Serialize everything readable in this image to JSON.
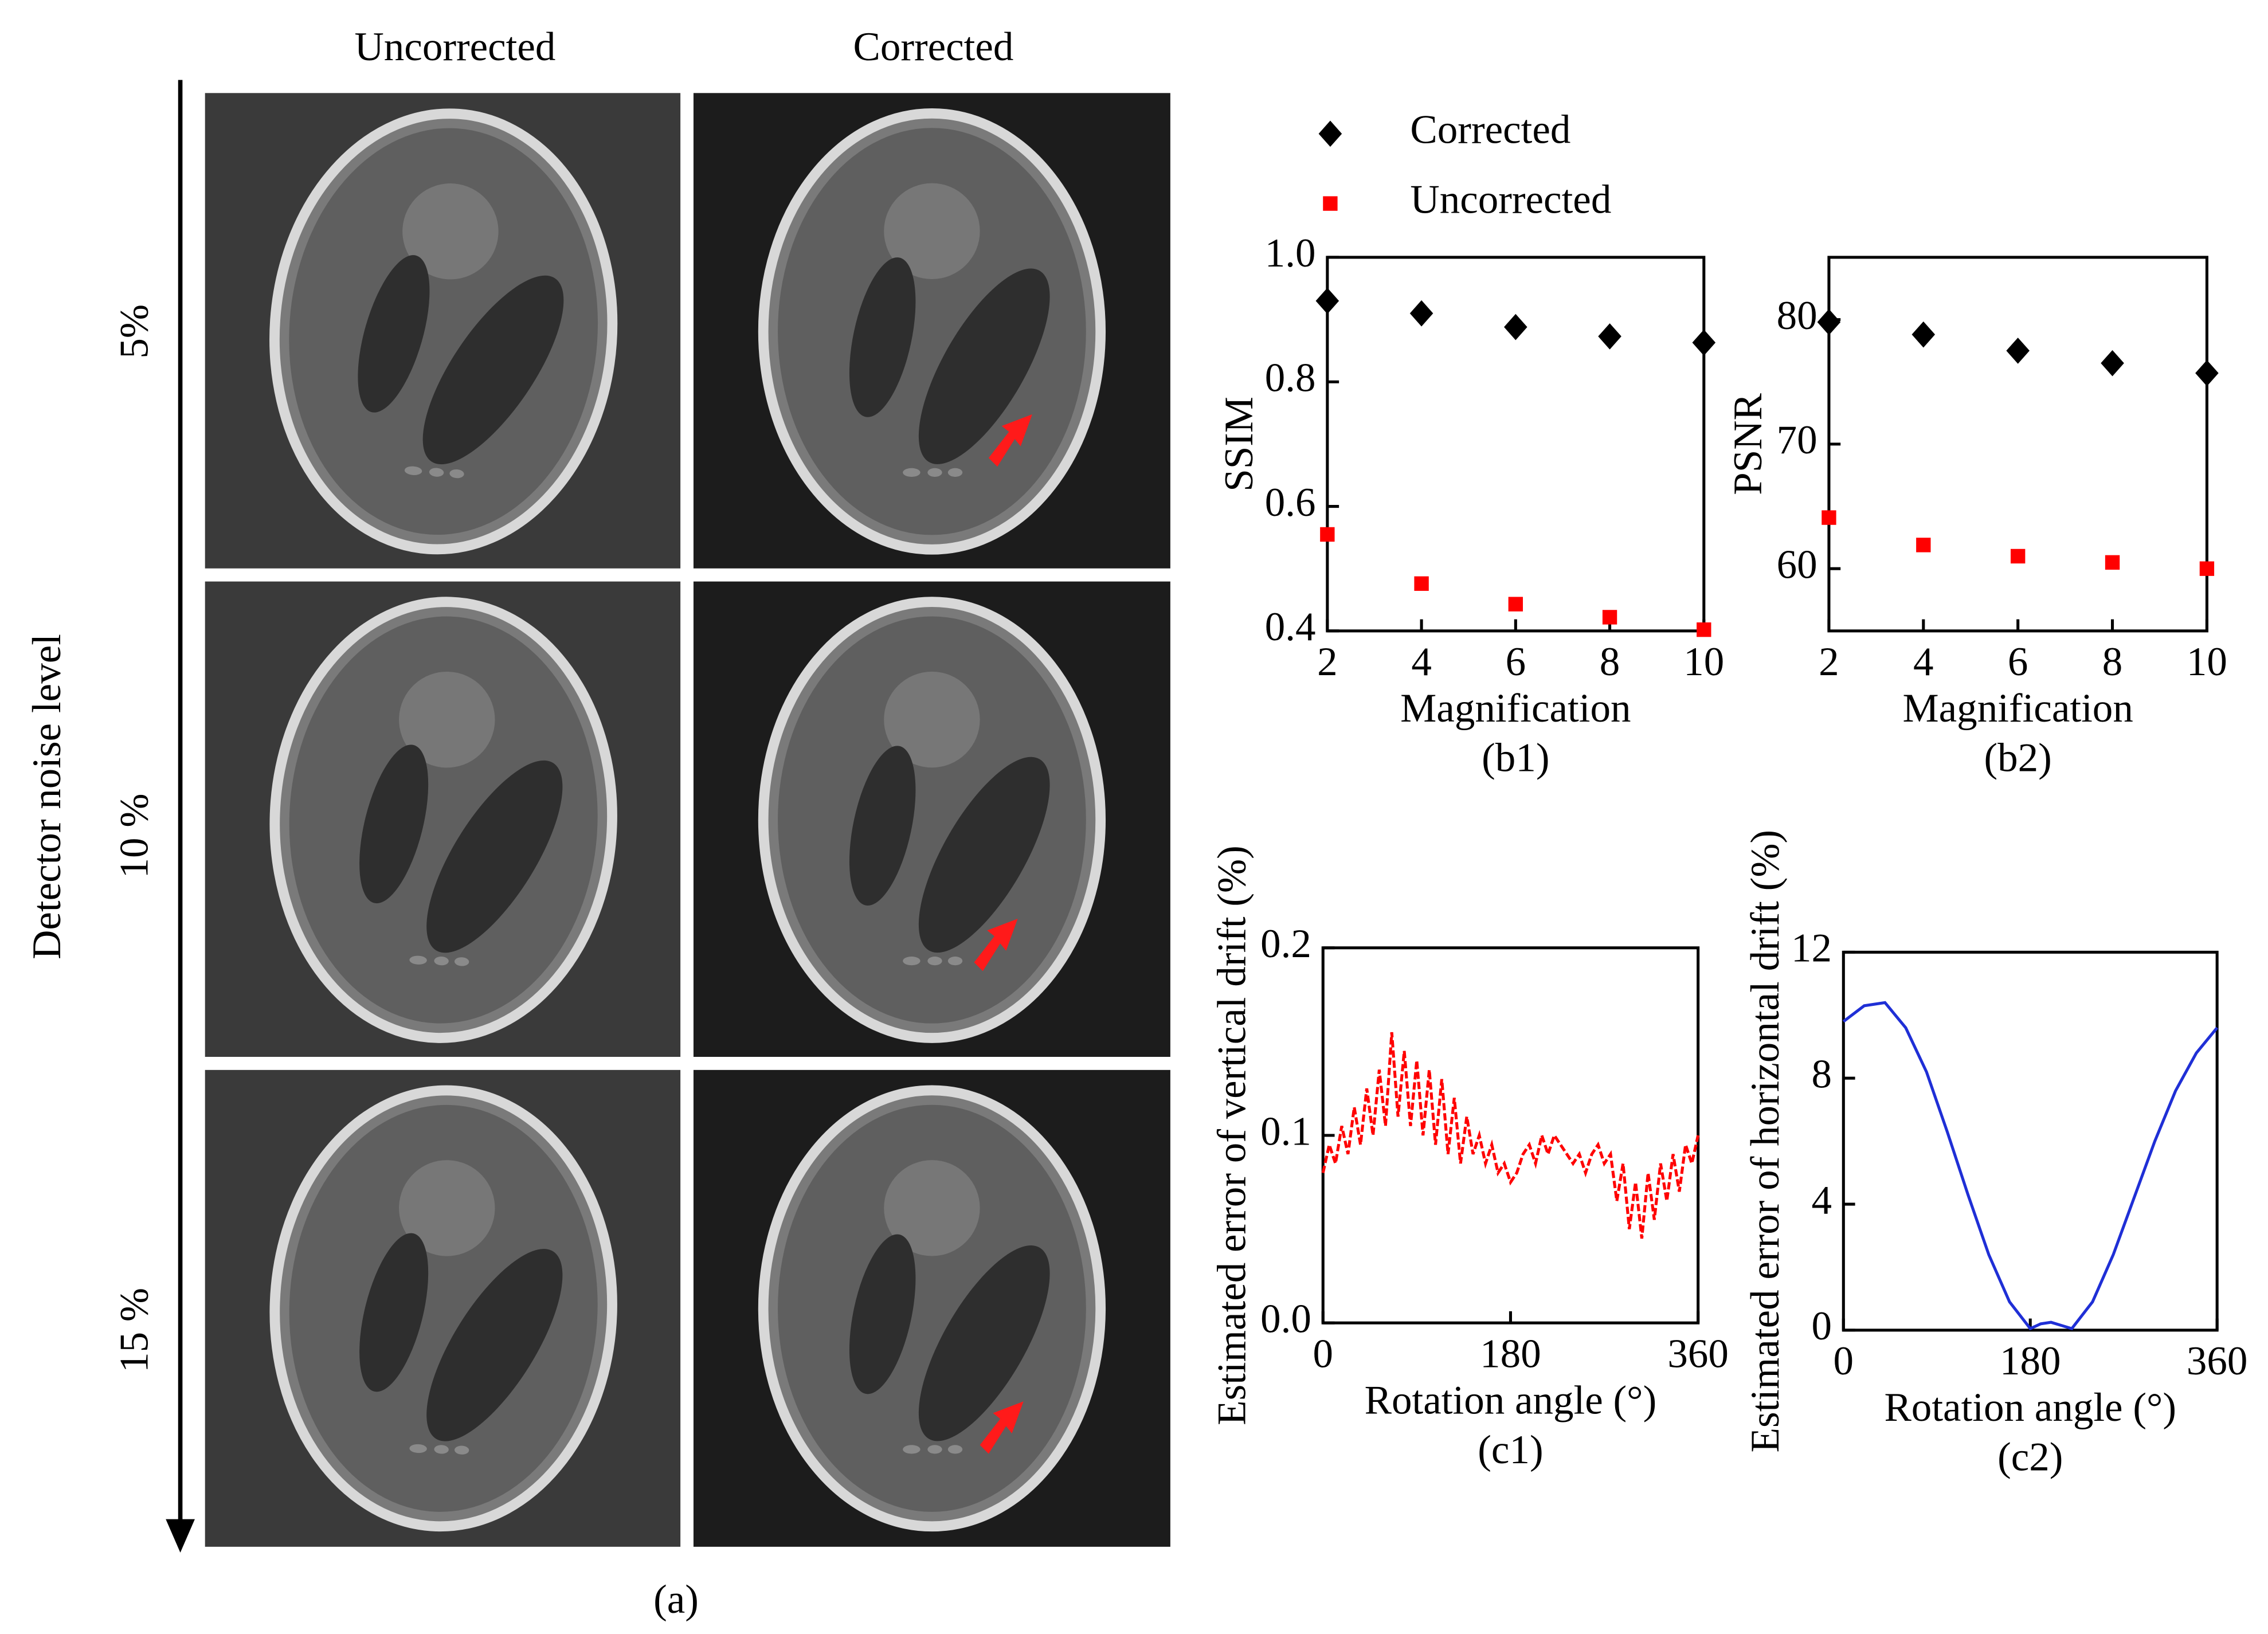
{
  "panel_a": {
    "columns": [
      "Uncorrected",
      "Corrected"
    ],
    "rows": [
      "5%",
      "10 %",
      "15 %"
    ],
    "axis_label": "Detector noise level",
    "caption": "(a)"
  },
  "chart_data": [
    {
      "type": "scatter",
      "caption": "(b1)",
      "xlabel": "Magnification",
      "ylabel": "SSIM",
      "x": [
        2,
        4,
        6,
        8,
        10
      ],
      "xlim": [
        2,
        10
      ],
      "xticks": [
        2,
        4,
        6,
        8,
        10
      ],
      "ylim": [
        0.4,
        1.0
      ],
      "yticks": [
        0.4,
        0.6,
        0.8,
        {
          "value": 1.0,
          "label": "1.0"
        }
      ],
      "legend": true,
      "series": [
        {
          "name": "Corrected",
          "color": "#000000",
          "marker": "diamond",
          "values": [
            0.93,
            0.91,
            0.888,
            0.873,
            0.863
          ]
        },
        {
          "name": "Uncorrected",
          "color": "#ff0000",
          "marker": "square",
          "values": [
            0.555,
            0.476,
            0.443,
            0.422,
            0.402
          ]
        }
      ]
    },
    {
      "type": "scatter",
      "caption": "(b2)",
      "xlabel": "Magnification",
      "ylabel": "PSNR",
      "x": [
        2,
        4,
        6,
        8,
        10
      ],
      "xlim": [
        2,
        10
      ],
      "xticks": [
        2,
        4,
        6,
        8,
        10
      ],
      "ylim": [
        55,
        85
      ],
      "yticks": [
        60,
        70,
        80
      ],
      "series": [
        {
          "color": "#000000",
          "marker": "diamond",
          "values": [
            79.8,
            78.8,
            77.5,
            76.5,
            75.7
          ]
        },
        {
          "color": "#ff0000",
          "marker": "square",
          "values": [
            64.1,
            61.9,
            61.0,
            60.5,
            60.0
          ]
        }
      ]
    },
    {
      "type": "line",
      "caption": "(c1)",
      "xlabel": "Rotation angle (°)",
      "ylabel": "Estimated error of vertical drift (%)",
      "x": [
        0,
        6,
        12,
        18,
        24,
        30,
        36,
        42,
        48,
        54,
        60,
        66,
        72,
        78,
        84,
        90,
        96,
        102,
        108,
        114,
        120,
        126,
        132,
        138,
        144,
        150,
        156,
        162,
        168,
        174,
        180,
        186,
        192,
        198,
        204,
        210,
        216,
        222,
        228,
        234,
        240,
        246,
        252,
        258,
        264,
        270,
        276,
        282,
        288,
        294,
        300,
        306,
        312,
        318,
        324,
        330,
        336,
        342,
        348,
        354,
        360
      ],
      "xlim": [
        0,
        360
      ],
      "xticks": [
        0,
        180,
        360
      ],
      "ylim": [
        0,
        0.2
      ],
      "yticks": [
        {
          "value": 0,
          "label": "0.0"
        },
        0.1,
        0.2
      ],
      "series": [
        {
          "color": "#ff0000",
          "dash": true,
          "values": [
            0.08,
            0.095,
            0.085,
            0.105,
            0.09,
            0.115,
            0.095,
            0.125,
            0.1,
            0.135,
            0.105,
            0.155,
            0.11,
            0.145,
            0.105,
            0.14,
            0.1,
            0.135,
            0.095,
            0.13,
            0.09,
            0.12,
            0.085,
            0.11,
            0.09,
            0.1,
            0.085,
            0.095,
            0.08,
            0.085,
            0.075,
            0.08,
            0.09,
            0.095,
            0.085,
            0.1,
            0.09,
            0.1,
            0.095,
            0.09,
            0.085,
            0.09,
            0.08,
            0.09,
            0.095,
            0.085,
            0.09,
            0.065,
            0.085,
            0.05,
            0.075,
            0.045,
            0.08,
            0.055,
            0.085,
            0.065,
            0.09,
            0.07,
            0.095,
            0.085,
            0.1
          ]
        }
      ]
    },
    {
      "type": "line",
      "caption": "(c2)",
      "xlabel": "Rotation angle (°)",
      "ylabel": "Estimated error of horizontal drift (%)",
      "x": [
        0,
        20,
        40,
        60,
        80,
        100,
        120,
        140,
        160,
        180,
        190,
        200,
        210,
        220,
        240,
        260,
        280,
        300,
        320,
        340,
        360
      ],
      "xlim": [
        0,
        360
      ],
      "xticks": [
        0,
        180,
        360
      ],
      "ylim": [
        0,
        12
      ],
      "yticks": [
        0,
        4,
        8,
        12
      ],
      "series": [
        {
          "color": "#1f2fd6",
          "dash": false,
          "values": [
            9.8,
            10.3,
            10.4,
            9.6,
            8.2,
            6.3,
            4.3,
            2.4,
            0.9,
            0.05,
            0.2,
            0.25,
            0.15,
            0.05,
            0.9,
            2.4,
            4.2,
            6.0,
            7.6,
            8.8,
            9.6
          ]
        }
      ]
    }
  ]
}
